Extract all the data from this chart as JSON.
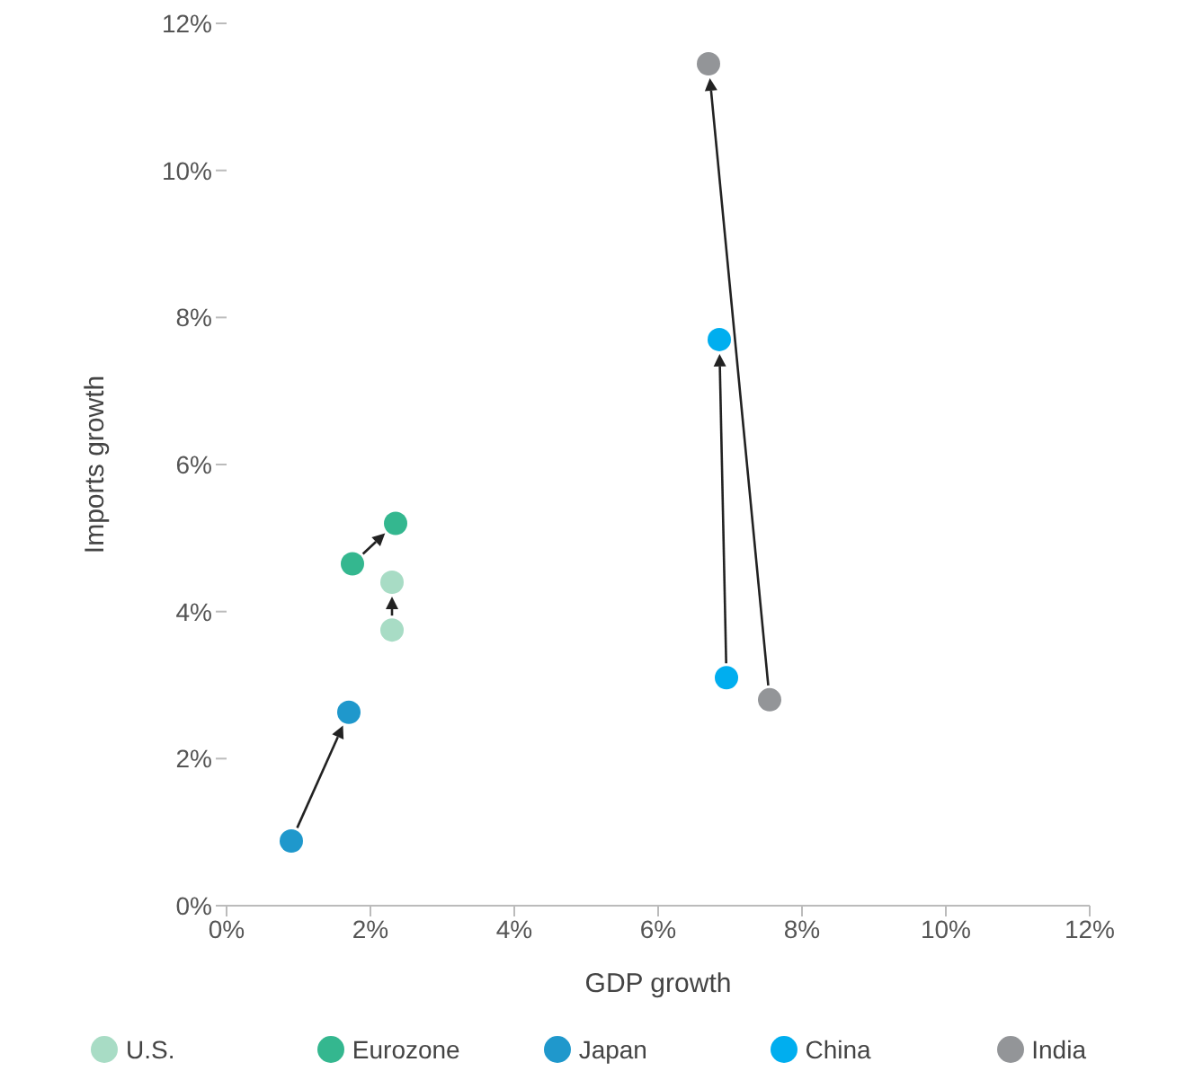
{
  "chart_data": {
    "type": "scatter",
    "xlabel": "GDP growth",
    "ylabel": "Imports growth",
    "xlim": [
      0,
      12
    ],
    "xticks": [
      {
        "value": 0,
        "label": "0%"
      },
      {
        "value": 2,
        "label": "2%"
      },
      {
        "value": 4,
        "label": "4%"
      },
      {
        "value": 6,
        "label": "6%"
      },
      {
        "value": 8,
        "label": "8%"
      },
      {
        "value": 10,
        "label": "10%"
      },
      {
        "value": 12,
        "label": "12%"
      }
    ],
    "ylim": [
      0,
      12
    ],
    "yticks": [
      {
        "value": 0,
        "label": "0%"
      },
      {
        "value": 2,
        "label": "2%"
      },
      {
        "value": 4,
        "label": "4%"
      },
      {
        "value": 6,
        "label": "6%"
      },
      {
        "value": 8,
        "label": "8%"
      },
      {
        "value": 10,
        "label": "10%"
      },
      {
        "value": 12,
        "label": "12%"
      }
    ],
    "grid": false,
    "legend": "bottom",
    "marker": "circle",
    "series": [
      {
        "name": "U.S.",
        "color": "#a8dcc5",
        "x": [
          2.3,
          2.3
        ],
        "values": [
          3.75,
          4.4
        ]
      },
      {
        "name": "Eurozone",
        "color": "#34b78f",
        "x": [
          1.75,
          2.35
        ],
        "values": [
          4.65,
          5.2
        ]
      },
      {
        "name": "Japan",
        "color": "#1f98cc",
        "x": [
          0.9,
          1.7
        ],
        "values": [
          0.88,
          2.63
        ]
      },
      {
        "name": "China",
        "color": "#00aeef",
        "x": [
          6.95,
          6.85
        ],
        "values": [
          3.1,
          7.7
        ]
      },
      {
        "name": "India",
        "color": "#939598",
        "x": [
          7.55,
          6.7
        ],
        "values": [
          2.8,
          11.45
        ]
      }
    ]
  }
}
